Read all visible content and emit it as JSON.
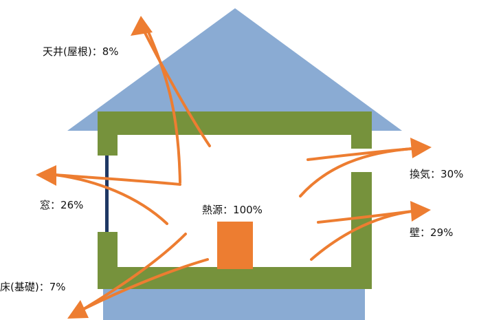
{
  "title": "",
  "heat_source": {
    "name": "熱源",
    "separator": "：",
    "value": "100%"
  },
  "heat_losses": [
    {
      "name": "天井(屋根)",
      "separator": "：",
      "value": "8%"
    },
    {
      "name": "換気",
      "separator": "：",
      "value": "30%"
    },
    {
      "name": "窓",
      "separator": "：",
      "value": "26%"
    },
    {
      "name": "壁",
      "separator": "：",
      "value": "29%"
    },
    {
      "name": "床(基礎)",
      "separator": "：",
      "value": "7%"
    }
  ],
  "colors": {
    "roof": "#8aabd3",
    "foundation": "#8aabd3",
    "wall": "#76923c",
    "window": "#1f3864",
    "arrow": "#ed7d31",
    "heat_source": "#ed7d31",
    "text": "#111111"
  }
}
